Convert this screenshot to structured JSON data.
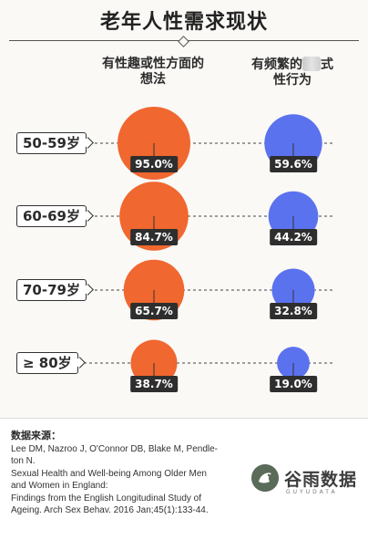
{
  "title": "老年人性需求现状",
  "columns": {
    "left": [
      "有性趣或性方面的",
      "想法"
    ],
    "right": [
      "有频繁的",
      "式",
      "性行为"
    ]
  },
  "chart_data": {
    "type": "bubble",
    "title": "老年人性需求现状",
    "categories": [
      "50-59岁",
      "60-69岁",
      "70-79岁",
      "≥ 80岁"
    ],
    "series": [
      {
        "name": "有性趣或性方面的想法",
        "values": [
          95.0,
          84.7,
          65.7,
          38.7
        ],
        "labels": [
          "95.0%",
          "84.7%",
          "65.7%",
          "38.7%"
        ],
        "color": "#f0672f"
      },
      {
        "name": "有频繁的式性行为",
        "values": [
          59.6,
          44.2,
          32.8,
          19.0
        ],
        "labels": [
          "59.6%",
          "44.2%",
          "32.8%",
          "19.0%"
        ],
        "color": "#5b72ef"
      }
    ],
    "unit": "%"
  },
  "source": {
    "heading": "数据来源：",
    "lines": [
      "Lee DM, Nazroo J, O'Connor DB, Blake M, Pendle-",
      "ton N.",
      "Sexual Health and Well-being Among Older Men",
      "and Women in England:",
      "Findings from the English Longitudinal Study of",
      "Ageing. Arch Sex Behav. 2016 Jan;45(1):133-44."
    ]
  },
  "logo": {
    "name": "谷雨数据",
    "sub": "GUYUDATA"
  },
  "colors": {
    "orange": "#f0672f",
    "blue": "#5b72ef",
    "label_bg": "#2e2e2e"
  }
}
